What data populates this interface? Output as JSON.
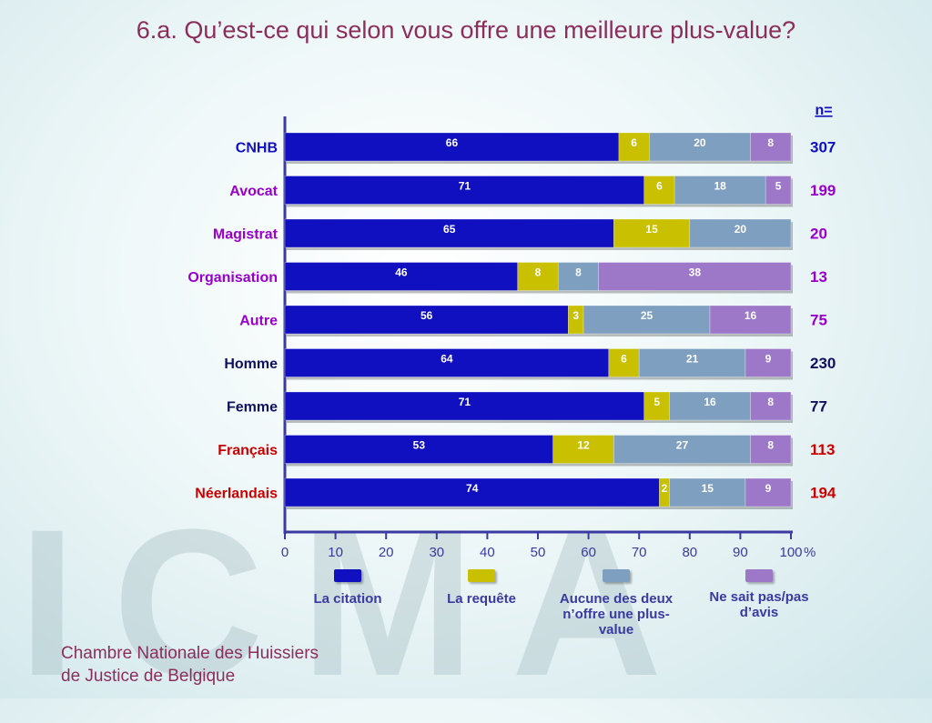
{
  "title": "6.a. Qu’est-ce qui selon vous offre une meilleure plus-value?",
  "watermark": "ICMA",
  "footer": {
    "line1": "Chambre Nationale des Huissiers",
    "line2": "de Justice de Belgique"
  },
  "n_header": "n=",
  "colors": {
    "series": [
      "#1010c0",
      "#c8c000",
      "#7f9fc0",
      "#9e78c8"
    ],
    "label_blue": "#1010c0",
    "label_purple": "#9900cc",
    "label_navy": "#101060",
    "label_red": "#cc0000",
    "axis": "#3a3aa0"
  },
  "chart_data": {
    "type": "bar",
    "orientation": "horizontal",
    "stacked": true,
    "categories": [
      "CNHB",
      "Avocat",
      "Magistrat",
      "Organisation",
      "Autre",
      "Homme",
      "Femme",
      "Français",
      "Néerlandais"
    ],
    "category_colors": [
      "label_blue",
      "label_purple",
      "label_purple",
      "label_purple",
      "label_purple",
      "label_navy",
      "label_navy",
      "label_red",
      "label_red"
    ],
    "n_values": [
      "307",
      "199",
      "20",
      "13",
      "75",
      "230",
      "77",
      "113",
      "194"
    ],
    "series": [
      {
        "name": "La citation",
        "values": [
          66,
          71,
          65,
          46,
          56,
          64,
          71,
          53,
          74
        ]
      },
      {
        "name": "La requête",
        "values": [
          6,
          6,
          15,
          8,
          3,
          6,
          5,
          12,
          2
        ]
      },
      {
        "name": "Aucune des deux n’offre une plus-value",
        "values": [
          20,
          18,
          20,
          8,
          25,
          21,
          16,
          27,
          15
        ]
      },
      {
        "name": "Ne sait pas/pas d’avis",
        "values": [
          8,
          5,
          0,
          38,
          16,
          9,
          8,
          8,
          9
        ]
      }
    ],
    "xlim": [
      0,
      100
    ],
    "xticks": [
      "0",
      "10",
      "20",
      "30",
      "40",
      "50",
      "60",
      "70",
      "80",
      "90",
      "100"
    ],
    "xtick_suffix": "%"
  }
}
